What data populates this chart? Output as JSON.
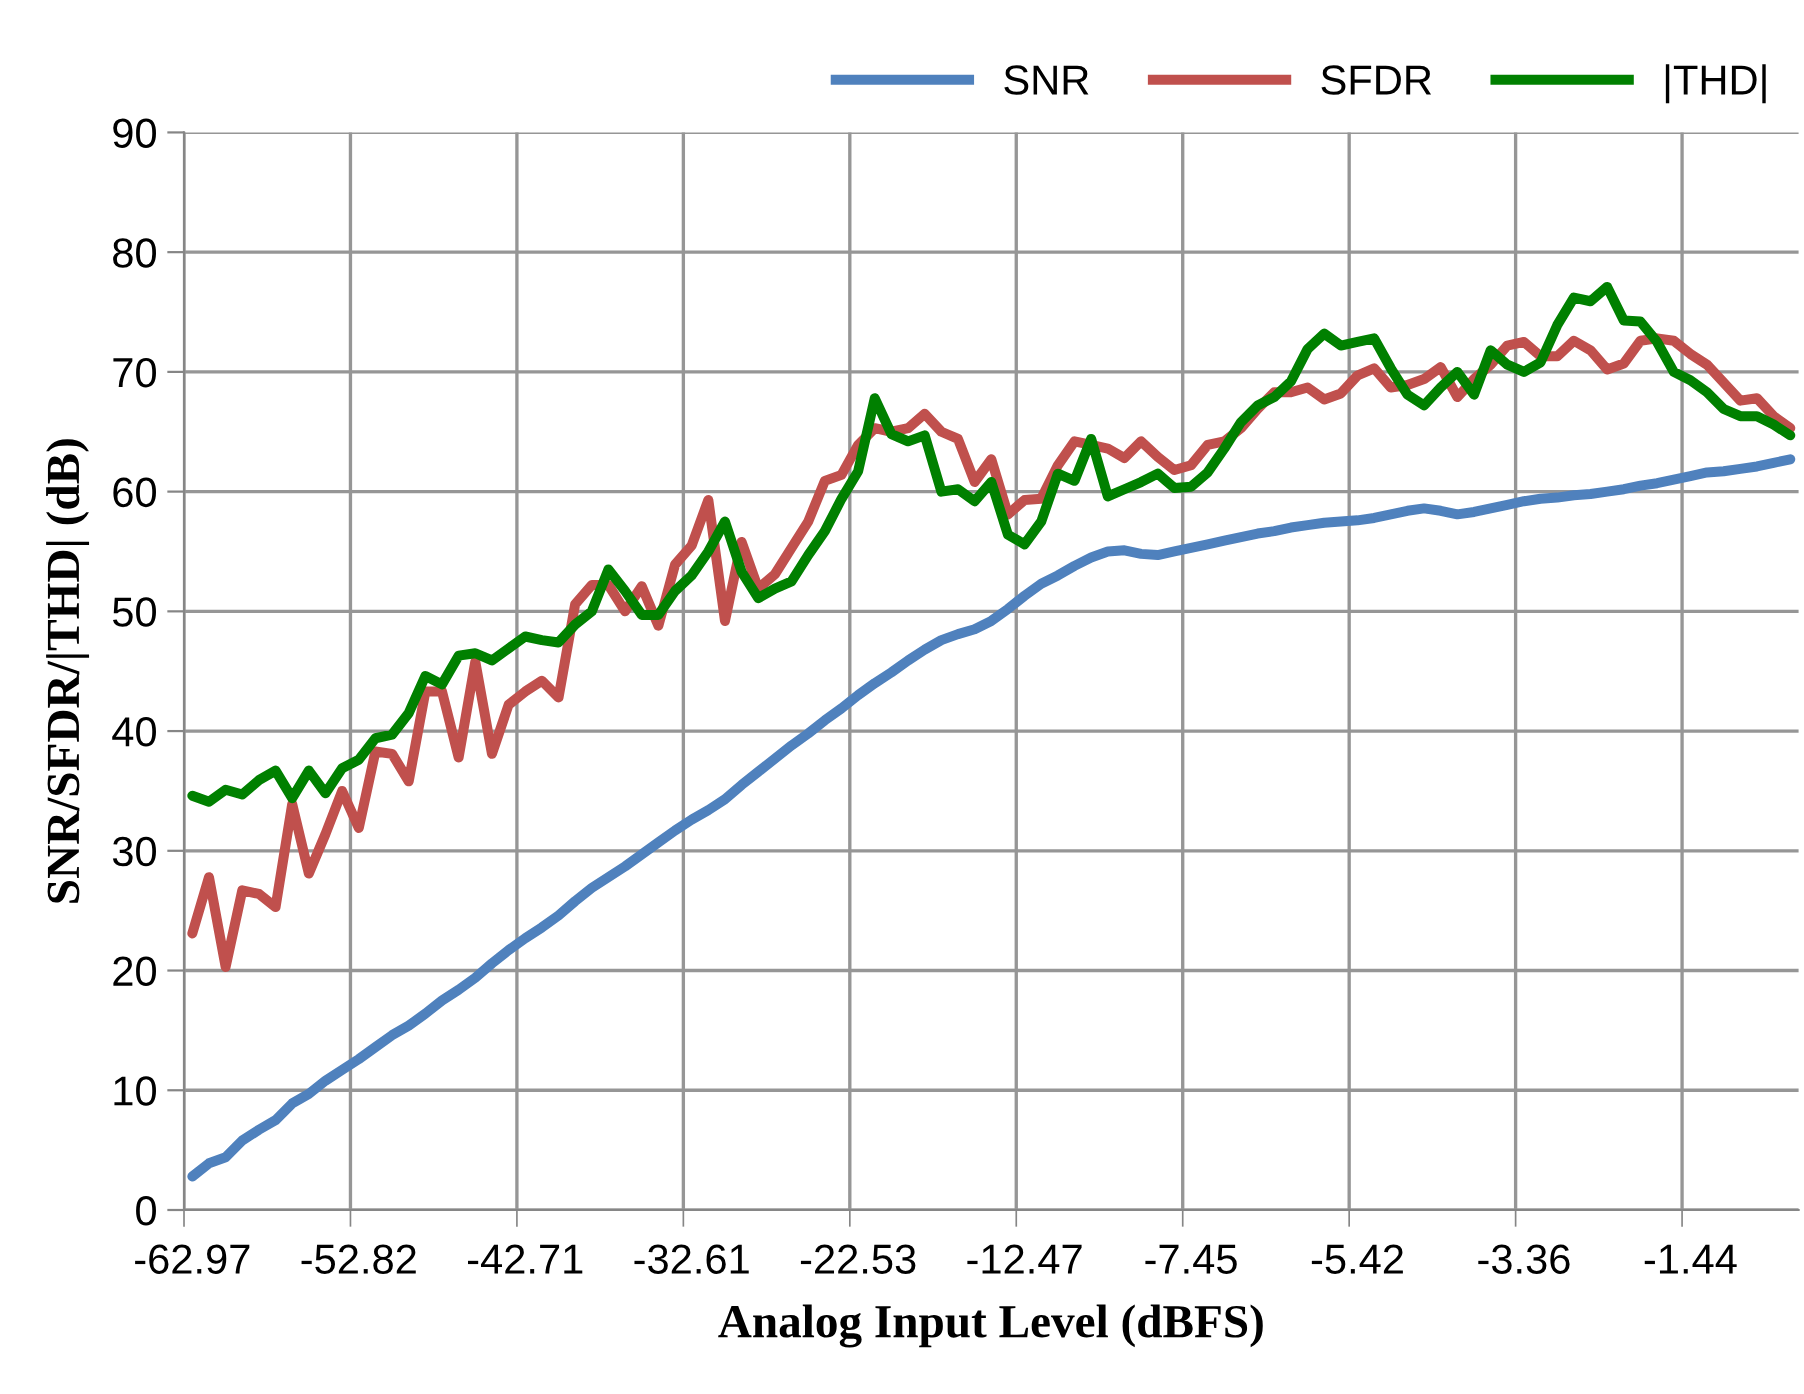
{
  "chart_data": {
    "type": "line",
    "xlabel": "Analog Input Level (dBFS)",
    "ylabel": "SNR/SFDR/|THD| (dB)",
    "categories": [
      "-62.97",
      null,
      null,
      null,
      null,
      null,
      null,
      null,
      null,
      null,
      "-52.82",
      null,
      null,
      null,
      null,
      null,
      null,
      null,
      null,
      null,
      "-42.71",
      null,
      null,
      null,
      null,
      null,
      null,
      null,
      null,
      null,
      "-32.61",
      null,
      null,
      null,
      null,
      null,
      null,
      null,
      null,
      null,
      "-22.53",
      null,
      null,
      null,
      null,
      null,
      null,
      null,
      null,
      null,
      "-12.47",
      null,
      null,
      null,
      null,
      null,
      null,
      null,
      null,
      null,
      "-7.45",
      null,
      null,
      null,
      null,
      null,
      null,
      null,
      null,
      null,
      "-5.42",
      null,
      null,
      null,
      null,
      null,
      null,
      null,
      null,
      null,
      "-3.36",
      null,
      null,
      null,
      null,
      null,
      null,
      null,
      null,
      null,
      "-1.44",
      null,
      null,
      null,
      null,
      null,
      null
    ],
    "series": [
      {
        "name": "SNR",
        "color": "#4f81bd",
        "values": [
          2.8,
          3.9,
          4.4,
          5.8,
          6.7,
          7.5,
          8.9,
          9.7,
          10.8,
          11.7,
          12.6,
          13.6,
          14.6,
          15.4,
          16.4,
          17.5,
          18.4,
          19.4,
          20.6,
          21.7,
          22.7,
          23.6,
          24.6,
          25.8,
          26.9,
          27.8,
          28.7,
          29.7,
          30.7,
          31.7,
          32.6,
          33.4,
          34.3,
          35.5,
          36.6,
          37.7,
          38.8,
          39.8,
          40.9,
          41.9,
          43.0,
          44.0,
          44.9,
          45.9,
          46.8,
          47.6,
          48.1,
          48.5,
          49.2,
          50.2,
          51.3,
          52.3,
          53.0,
          53.8,
          54.5,
          55.0,
          55.1,
          54.8,
          54.7,
          55.0,
          55.3,
          55.6,
          55.9,
          56.2,
          56.5,
          56.7,
          57.0,
          57.2,
          57.4,
          57.5,
          57.6,
          57.8,
          58.1,
          58.4,
          58.6,
          58.4,
          58.1,
          58.3,
          58.6,
          58.9,
          59.2,
          59.4,
          59.5,
          59.7,
          59.8,
          60.0,
          60.2,
          60.5,
          60.7,
          61.0,
          61.3,
          61.6,
          61.7,
          61.9,
          62.1,
          62.4,
          62.7
        ]
      },
      {
        "name": "SFDR",
        "color": "#c0504d",
        "values": [
          23.1,
          27.8,
          20.3,
          26.7,
          26.4,
          25.3,
          33.9,
          28.1,
          31.4,
          35.0,
          31.9,
          38.3,
          38.1,
          35.8,
          43.3,
          43.3,
          37.8,
          45.8,
          38.1,
          42.2,
          43.3,
          44.2,
          42.8,
          50.6,
          52.2,
          52.2,
          50.0,
          52.1,
          48.8,
          53.9,
          55.5,
          59.3,
          49.2,
          55.8,
          51.9,
          53.1,
          55.3,
          57.5,
          60.9,
          61.4,
          63.9,
          65.3,
          65.0,
          65.3,
          66.5,
          65.0,
          64.4,
          60.8,
          62.7,
          58.1,
          59.3,
          59.4,
          62.2,
          64.2,
          63.9,
          63.6,
          62.8,
          64.2,
          62.9,
          61.8,
          62.2,
          63.9,
          64.2,
          65.3,
          66.9,
          68.3,
          68.3,
          68.7,
          67.7,
          68.2,
          69.7,
          70.3,
          68.7,
          68.9,
          69.4,
          70.4,
          67.9,
          69.4,
          70.6,
          72.2,
          72.5,
          71.3,
          71.3,
          72.6,
          71.8,
          70.2,
          70.7,
          72.6,
          72.8,
          72.6,
          71.5,
          70.6,
          69.1,
          67.6,
          67.8,
          66.3,
          65.3
        ]
      },
      {
        "name": "|THD|",
        "color": "#008000",
        "values": [
          34.6,
          34.1,
          35.1,
          34.7,
          35.9,
          36.7,
          34.4,
          36.7,
          34.8,
          36.9,
          37.6,
          39.4,
          39.7,
          41.5,
          44.6,
          43.9,
          46.3,
          46.5,
          45.9,
          46.9,
          47.9,
          47.6,
          47.4,
          48.9,
          50.0,
          53.5,
          51.7,
          49.7,
          49.7,
          51.7,
          53.0,
          55.0,
          57.5,
          53.3,
          51.1,
          51.9,
          52.5,
          54.7,
          56.7,
          59.4,
          61.7,
          67.8,
          64.8,
          64.2,
          64.7,
          60.0,
          60.2,
          59.2,
          60.8,
          56.4,
          55.6,
          57.5,
          61.5,
          60.9,
          64.4,
          59.6,
          60.2,
          60.8,
          61.5,
          60.3,
          60.4,
          61.6,
          63.6,
          65.8,
          67.2,
          67.9,
          69.2,
          71.9,
          73.2,
          72.2,
          72.5,
          72.8,
          70.3,
          68.1,
          67.2,
          68.7,
          70.0,
          68.1,
          71.8,
          70.6,
          70.0,
          70.8,
          73.9,
          76.2,
          75.9,
          77.1,
          74.3,
          74.2,
          72.5,
          70.0,
          69.3,
          68.3,
          66.9,
          66.3,
          66.3,
          65.6,
          64.7
        ]
      }
    ],
    "ylim": [
      0,
      90
    ],
    "yticks": [
      0,
      10,
      20,
      30,
      40,
      50,
      60,
      70,
      80,
      90
    ],
    "grid": true,
    "legend": "top right",
    "marker": "none",
    "line_style": "solid"
  }
}
